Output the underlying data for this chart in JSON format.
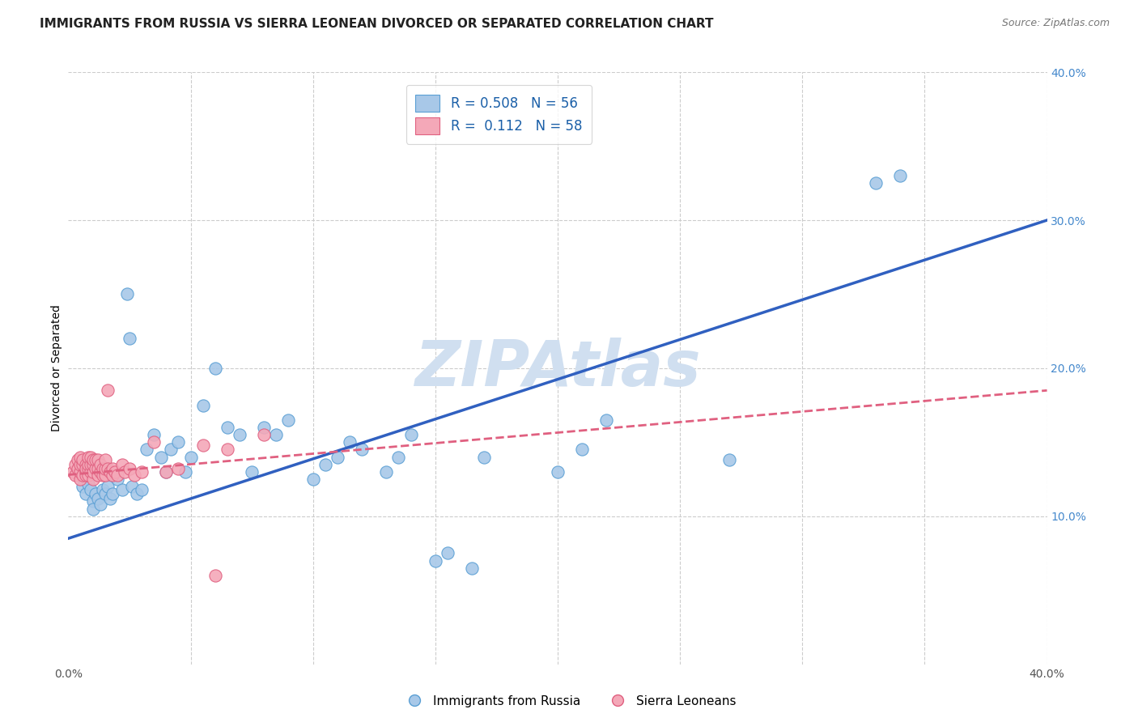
{
  "title": "IMMIGRANTS FROM RUSSIA VS SIERRA LEONEAN DIVORCED OR SEPARATED CORRELATION CHART",
  "source": "Source: ZipAtlas.com",
  "ylabel": "Divorced or Separated",
  "xlim": [
    0.0,
    0.4
  ],
  "ylim": [
    0.0,
    0.4
  ],
  "blue_color": "#a8c8e8",
  "blue_edge_color": "#5a9fd4",
  "pink_color": "#f4a8b8",
  "pink_edge_color": "#e06080",
  "blue_line_color": "#3060c0",
  "pink_line_color": "#e06080",
  "watermark": "ZIPAtlas",
  "watermark_color": "#d0dff0",
  "R_blue": 0.508,
  "N_blue": 56,
  "R_pink": 0.112,
  "N_pink": 58,
  "legend_label_blue": "Immigrants from Russia",
  "legend_label_pink": "Sierra Leoneans",
  "blue_scatter_x": [
    0.005,
    0.006,
    0.007,
    0.008,
    0.009,
    0.01,
    0.01,
    0.011,
    0.012,
    0.013,
    0.014,
    0.015,
    0.016,
    0.017,
    0.018,
    0.02,
    0.022,
    0.024,
    0.025,
    0.026,
    0.028,
    0.03,
    0.032,
    0.035,
    0.038,
    0.04,
    0.042,
    0.045,
    0.048,
    0.05,
    0.055,
    0.06,
    0.065,
    0.07,
    0.075,
    0.08,
    0.085,
    0.09,
    0.1,
    0.105,
    0.11,
    0.115,
    0.12,
    0.13,
    0.135,
    0.14,
    0.15,
    0.155,
    0.165,
    0.17,
    0.2,
    0.21,
    0.22,
    0.27,
    0.33,
    0.34
  ],
  "blue_scatter_y": [
    0.128,
    0.12,
    0.115,
    0.122,
    0.118,
    0.11,
    0.105,
    0.115,
    0.112,
    0.108,
    0.118,
    0.115,
    0.12,
    0.112,
    0.115,
    0.125,
    0.118,
    0.25,
    0.22,
    0.12,
    0.115,
    0.118,
    0.145,
    0.155,
    0.14,
    0.13,
    0.145,
    0.15,
    0.13,
    0.14,
    0.175,
    0.2,
    0.16,
    0.155,
    0.13,
    0.16,
    0.155,
    0.165,
    0.125,
    0.135,
    0.14,
    0.15,
    0.145,
    0.13,
    0.14,
    0.155,
    0.07,
    0.075,
    0.065,
    0.14,
    0.13,
    0.145,
    0.165,
    0.138,
    0.325,
    0.33
  ],
  "pink_scatter_x": [
    0.002,
    0.003,
    0.003,
    0.004,
    0.004,
    0.005,
    0.005,
    0.005,
    0.005,
    0.006,
    0.006,
    0.006,
    0.007,
    0.007,
    0.007,
    0.007,
    0.008,
    0.008,
    0.008,
    0.008,
    0.009,
    0.009,
    0.009,
    0.01,
    0.01,
    0.01,
    0.01,
    0.011,
    0.011,
    0.012,
    0.012,
    0.012,
    0.013,
    0.013,
    0.014,
    0.014,
    0.015,
    0.015,
    0.015,
    0.016,
    0.016,
    0.017,
    0.018,
    0.018,
    0.019,
    0.02,
    0.022,
    0.023,
    0.025,
    0.027,
    0.03,
    0.035,
    0.04,
    0.045,
    0.055,
    0.065,
    0.08,
    0.06
  ],
  "pink_scatter_y": [
    0.13,
    0.135,
    0.128,
    0.132,
    0.138,
    0.125,
    0.13,
    0.135,
    0.14,
    0.128,
    0.135,
    0.138,
    0.13,
    0.135,
    0.128,
    0.132,
    0.128,
    0.132,
    0.135,
    0.14,
    0.13,
    0.135,
    0.14,
    0.125,
    0.13,
    0.135,
    0.138,
    0.132,
    0.138,
    0.128,
    0.132,
    0.138,
    0.13,
    0.135,
    0.128,
    0.132,
    0.128,
    0.132,
    0.138,
    0.132,
    0.185,
    0.13,
    0.128,
    0.132,
    0.13,
    0.128,
    0.135,
    0.13,
    0.132,
    0.128,
    0.13,
    0.15,
    0.13,
    0.132,
    0.148,
    0.145,
    0.155,
    0.06
  ],
  "blue_line_x0": 0.0,
  "blue_line_y0": 0.085,
  "blue_line_x1": 0.4,
  "blue_line_y1": 0.3,
  "pink_line_x0": 0.0,
  "pink_line_y0": 0.128,
  "pink_line_x1": 0.4,
  "pink_line_y1": 0.185,
  "title_fontsize": 11,
  "axis_label_fontsize": 10,
  "tick_fontsize": 10,
  "legend_fontsize": 12
}
